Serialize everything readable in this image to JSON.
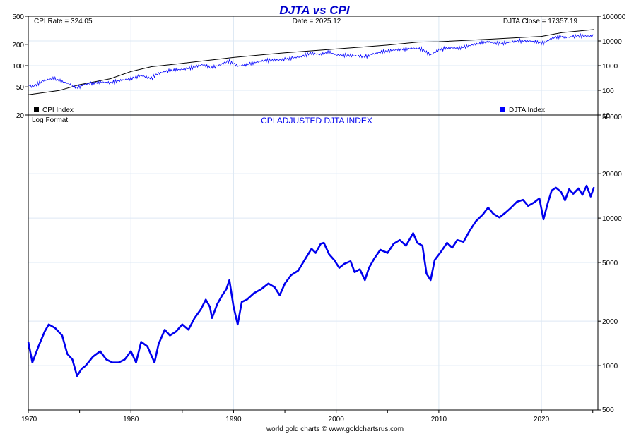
{
  "chart_data": [
    {
      "type": "line",
      "title": "DJTA vs CPI",
      "y_scale": "log",
      "x_ticks": [
        "1970",
        "1980",
        "1990",
        "2000",
        "2010",
        "2020"
      ],
      "left_axis": {
        "ylim": [
          20,
          500
        ],
        "ticks": [
          "500",
          "200",
          "100",
          "50",
          "20"
        ]
      },
      "right_axis": {
        "ylim": [
          10,
          100000
        ],
        "ticks": [
          "100000",
          "10000",
          "1000",
          "100",
          "10"
        ]
      },
      "info": {
        "cpi_rate": "CPI Rate = 324.05",
        "date": "Date = 2025.12",
        "djta_close": "DJTA Close = 17357.19"
      },
      "legend": {
        "cpi": "CPI Index",
        "djta": "DJTA Index"
      },
      "colors": {
        "cpi": "#000000",
        "djta": "#0000ff",
        "title": "#0000cc"
      },
      "series": [
        {
          "name": "CPI Index",
          "axis": "left",
          "x": [
            1970,
            1973,
            1975,
            1978,
            1980,
            1982,
            1985,
            1990,
            1995,
            2000,
            2005,
            2008,
            2010,
            2015,
            2020,
            2022,
            2025.12
          ],
          "values": [
            38.8,
            44.4,
            53.8,
            65.2,
            82.4,
            96.5,
            107.6,
            130.7,
            152.4,
            172.2,
            195.3,
            215.3,
            218.1,
            237.0,
            258.8,
            292.7,
            324.05
          ]
        },
        {
          "name": "DJTA Index",
          "axis": "right",
          "x": [
            1970,
            1970.4,
            1971.5,
            1972.5,
            1973,
            1974,
            1974.75,
            1975.5,
            1977,
            1978,
            1979,
            1980,
            1981,
            1982,
            1982.5,
            1983.5,
            1985,
            1986,
            1987,
            1987.8,
            1988.5,
            1989.5,
            1990.5,
            1991.5,
            1993,
            1994.5,
            1995.5,
            1996.5,
            1997.5,
            1998.5,
            1999.3,
            2000,
            2001.5,
            2002.8,
            2003.5,
            2004.5,
            2006,
            2007.5,
            2008.3,
            2009.2,
            2010,
            2011,
            2012,
            2013,
            2014.8,
            2015.5,
            2016.2,
            2017.5,
            2018.8,
            2020.2,
            2021,
            2021.8,
            2022.5,
            2023.5,
            2024.8,
            2025.12
          ],
          "values": [
            170,
            140,
            250,
            300,
            250,
            180,
            125,
            175,
            220,
            200,
            250,
            300,
            400,
            300,
            450,
            600,
            700,
            850,
            1100,
            800,
            1000,
            1500,
            950,
            1200,
            1600,
            1700,
            2000,
            2300,
            3200,
            2800,
            3500,
            2700,
            2600,
            2300,
            2900,
            3600,
            4500,
            5100,
            4700,
            2700,
            4400,
            5300,
            5200,
            6500,
            9100,
            8100,
            7900,
            9900,
            10000,
            8000,
            13000,
            15500,
            14000,
            16000,
            15500,
            17357.19
          ]
        },
        {
          "name": "CPI adjusted DJTA",
          "title": "CPI ADJUSTED DJTA INDEX",
          "note": "Log Format",
          "yticks": [
            "50000",
            "20000",
            "10000",
            "5000",
            "2000",
            "1000",
            "500"
          ],
          "ylim": [
            500,
            50000
          ],
          "x": [
            1970,
            1970.4,
            1971,
            1971.6,
            1972,
            1972.6,
            1973.3,
            1973.8,
            1974.3,
            1974.75,
            1975.2,
            1975.6,
            1976.3,
            1977,
            1977.6,
            1978.2,
            1978.8,
            1979.4,
            1980,
            1980.5,
            1981,
            1981.6,
            1982.3,
            1982.7,
            1983.3,
            1983.8,
            1984.4,
            1985,
            1985.6,
            1986.2,
            1986.8,
            1987.3,
            1987.7,
            1987.9,
            1988.4,
            1988.9,
            1989.3,
            1989.6,
            1990,
            1990.4,
            1990.8,
            1991.3,
            1992,
            1992.7,
            1993.4,
            1994,
            1994.5,
            1995,
            1995.6,
            1996.3,
            1997,
            1997.6,
            1998,
            1998.5,
            1998.8,
            1999.3,
            1999.8,
            2000.3,
            2000.8,
            2001.4,
            2001.8,
            2002.3,
            2002.8,
            2003.2,
            2003.7,
            2004.3,
            2005,
            2005.6,
            2006.2,
            2006.8,
            2007.5,
            2007.9,
            2008.4,
            2008.8,
            2009.2,
            2009.6,
            2010.2,
            2010.8,
            2011.3,
            2011.8,
            2012.4,
            2013,
            2013.6,
            2014.3,
            2014.8,
            2015.3,
            2015.9,
            2016.5,
            2017,
            2017.6,
            2018.2,
            2018.7,
            2019.3,
            2019.8,
            2020.2,
            2020.6,
            2021,
            2021.4,
            2021.9,
            2022.3,
            2022.7,
            2023.1,
            2023.6,
            2024,
            2024.4,
            2024.8,
            2025.12
          ],
          "values": [
            1450,
            1050,
            1350,
            1700,
            1900,
            1800,
            1600,
            1200,
            1100,
            850,
            950,
            1000,
            1150,
            1250,
            1100,
            1050,
            1050,
            1100,
            1250,
            1050,
            1450,
            1350,
            1050,
            1400,
            1750,
            1600,
            1700,
            1900,
            1750,
            2100,
            2400,
            2800,
            2500,
            2100,
            2600,
            3000,
            3300,
            3800,
            2500,
            1900,
            2700,
            2800,
            3100,
            3300,
            3600,
            3400,
            3000,
            3600,
            4100,
            4400,
            5300,
            6200,
            5800,
            6700,
            6800,
            5700,
            5200,
            4600,
            4900,
            5100,
            4300,
            4500,
            3800,
            4600,
            5300,
            6100,
            5800,
            6700,
            7100,
            6500,
            7900,
            6800,
            6500,
            4200,
            3800,
            5200,
            5900,
            6800,
            6300,
            7100,
            6900,
            8200,
            9500,
            10600,
            11800,
            10700,
            10100,
            10900,
            11700,
            12900,
            13300,
            12100,
            12800,
            13600,
            9800,
            12500,
            15400,
            16100,
            15100,
            13200,
            15700,
            14600,
            15900,
            14400,
            16600,
            14000,
            16200
          ]
        }
      ],
      "footer": "world gold charts © www.goldchartsrus.com"
    }
  ]
}
